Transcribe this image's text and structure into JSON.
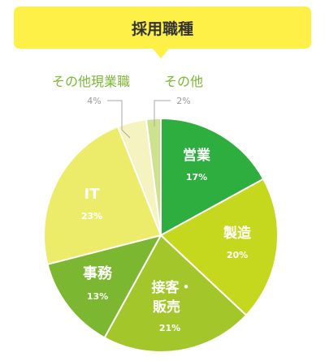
{
  "chart_data": {
    "type": "pie",
    "title": "採用職種",
    "slices": [
      {
        "label": "営業",
        "value": 17,
        "value_label": "17%",
        "color": "#2DAE3E"
      },
      {
        "label": "製造",
        "value": 20,
        "value_label": "20%",
        "color": "#C6D81D"
      },
      {
        "label": "接客・販売",
        "value": 21,
        "value_label": "21%",
        "color": "#A3C72A"
      },
      {
        "label": "事務",
        "value": 13,
        "value_label": "13%",
        "color": "#7CB732"
      },
      {
        "label": "IT",
        "value": 23,
        "value_label": "23%",
        "color": "#ECEC6A"
      },
      {
        "label": "その他現業職",
        "value": 4,
        "value_label": "4%",
        "color": "#F5F3BF"
      },
      {
        "label": "その他",
        "value": 2,
        "value_label": "2%",
        "color": "#CDE28E"
      }
    ]
  },
  "colors": {
    "title_box": "#FFF047",
    "title_text": "#333333",
    "inside_label": "#ffffff",
    "outside_label": "#7CB732",
    "outside_value": "#999999"
  }
}
